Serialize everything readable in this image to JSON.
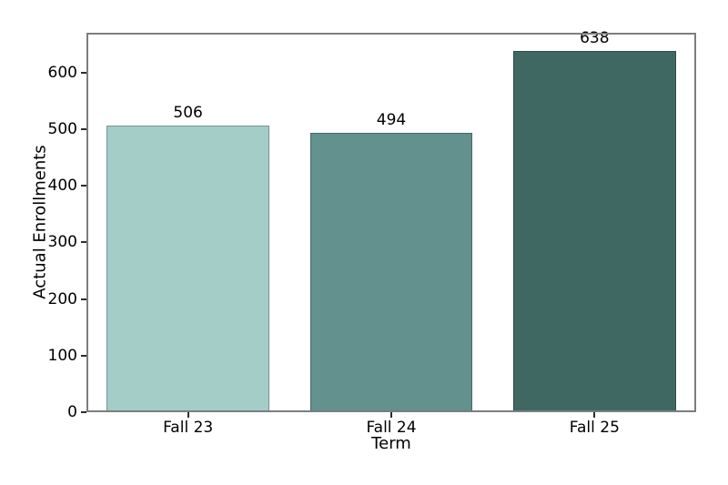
{
  "chart_data": {
    "type": "bar",
    "title": "",
    "xlabel": "Term",
    "ylabel": "Actual Enrollments",
    "categories": [
      "Fall 23",
      "Fall 24",
      "Fall 25"
    ],
    "values": [
      506,
      494,
      638
    ],
    "bar_labels": [
      "506",
      "494",
      "638"
    ],
    "bar_colors": [
      "#a4cdc8",
      "#63918d",
      "#3f6862"
    ],
    "bar_edge_color": "rgba(0,0,0,0.28)",
    "ylim": [
      0,
      670
    ],
    "yticks": [
      0,
      100,
      200,
      300,
      400,
      500,
      600
    ],
    "bar_width_fraction": 0.8,
    "grid": false,
    "legend_position": "none",
    "background_color": "#ffffff"
  },
  "colors": {
    "spine": "#7d7d7d",
    "tick": "#2b2b2b",
    "text": "#000000"
  }
}
